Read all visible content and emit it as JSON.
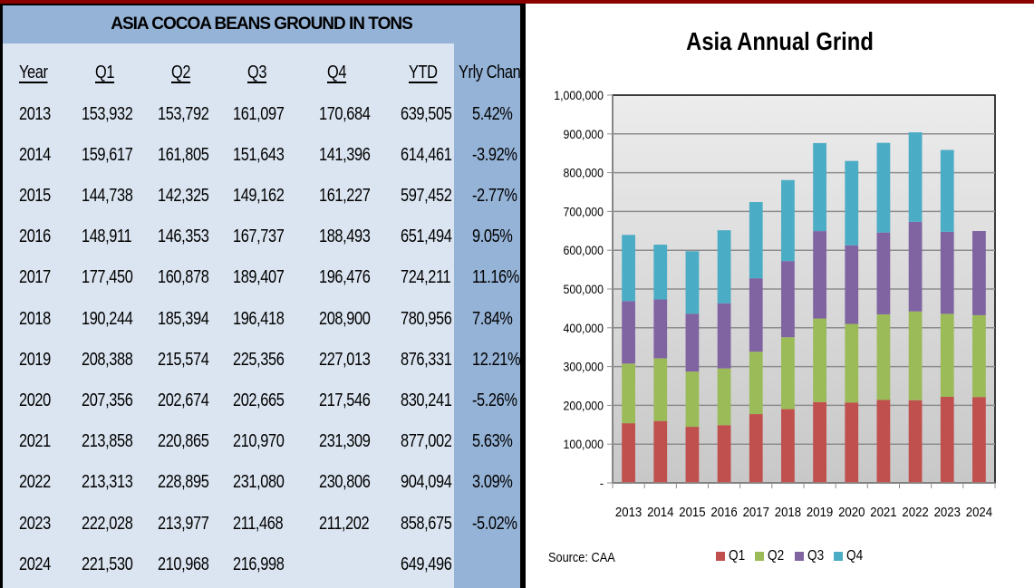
{
  "table": {
    "title": "ASIA COCOA BEANS GROUND IN TONS",
    "headers": [
      "Year",
      "Q1",
      "Q2",
      "Q3",
      "Q4",
      "YTD",
      "Yrly Change"
    ],
    "rows": [
      {
        "year": "2013",
        "q1": "153,932",
        "q2": "153,792",
        "q3": "161,097",
        "q4": "170,684",
        "ytd": "639,505",
        "change": "5.42%"
      },
      {
        "year": "2014",
        "q1": "159,617",
        "q2": "161,805",
        "q3": "151,643",
        "q4": "141,396",
        "ytd": "614,461",
        "change": "-3.92%"
      },
      {
        "year": "2015",
        "q1": "144,738",
        "q2": "142,325",
        "q3": "149,162",
        "q4": "161,227",
        "ytd": "597,452",
        "change": "-2.77%"
      },
      {
        "year": "2016",
        "q1": "148,911",
        "q2": "146,353",
        "q3": "167,737",
        "q4": "188,493",
        "ytd": "651,494",
        "change": "9.05%"
      },
      {
        "year": "2017",
        "q1": "177,450",
        "q2": "160,878",
        "q3": "189,407",
        "q4": "196,476",
        "ytd": "724,211",
        "change": "11.16%"
      },
      {
        "year": "2018",
        "q1": "190,244",
        "q2": "185,394",
        "q3": "196,418",
        "q4": "208,900",
        "ytd": "780,956",
        "change": "7.84%"
      },
      {
        "year": "2019",
        "q1": "208,388",
        "q2": "215,574",
        "q3": "225,356",
        "q4": "227,013",
        "ytd": "876,331",
        "change": "12.21%"
      },
      {
        "year": "2020",
        "q1": "207,356",
        "q2": "202,674",
        "q3": "202,665",
        "q4": "217,546",
        "ytd": "830,241",
        "change": "-5.26%"
      },
      {
        "year": "2021",
        "q1": "213,858",
        "q2": "220,865",
        "q3": "210,970",
        "q4": "231,309",
        "ytd": "877,002",
        "change": "5.63%"
      },
      {
        "year": "2022",
        "q1": "213,313",
        "q2": "228,895",
        "q3": "231,080",
        "q4": "230,806",
        "ytd": "904,094",
        "change": "3.09%"
      },
      {
        "year": "2023",
        "q1": "222,028",
        "q2": "213,977",
        "q3": "211,468",
        "q4": "211,202",
        "ytd": "858,675",
        "change": "-5.02%"
      },
      {
        "year": "2024",
        "q1": "221,530",
        "q2": "210,968",
        "q3": "216,998",
        "q4": "",
        "ytd": "649,496",
        "change": ""
      }
    ]
  },
  "chart_data": {
    "type": "bar",
    "stacked": true,
    "title": "Asia Annual Grind",
    "xlabel": "",
    "ylabel": "",
    "categories": [
      "2013",
      "2014",
      "2015",
      "2016",
      "2017",
      "2018",
      "2019",
      "2020",
      "2021",
      "2022",
      "2023",
      "2024"
    ],
    "series": [
      {
        "name": "Q1",
        "color": "#c0504d",
        "values": [
          153932,
          159617,
          144738,
          148911,
          177450,
          190244,
          208388,
          207356,
          213858,
          213313,
          222028,
          221530
        ]
      },
      {
        "name": "Q2",
        "color": "#9bbb59",
        "values": [
          153792,
          161805,
          142325,
          146353,
          160878,
          185394,
          215574,
          202674,
          220865,
          228895,
          213977,
          210968
        ]
      },
      {
        "name": "Q3",
        "color": "#8064a2",
        "values": [
          161097,
          151643,
          149162,
          167737,
          189407,
          196418,
          225356,
          202665,
          210970,
          231080,
          211468,
          216998
        ]
      },
      {
        "name": "Q4",
        "color": "#4bacc6",
        "values": [
          170684,
          141396,
          161227,
          188493,
          196476,
          208900,
          227013,
          217546,
          231309,
          230806,
          211202,
          0
        ]
      }
    ],
    "ylim": [
      0,
      1000000
    ],
    "yticks": [
      0,
      100000,
      200000,
      300000,
      400000,
      500000,
      600000,
      700000,
      800000,
      900000,
      1000000
    ],
    "ytick_labels": [
      "-",
      "100,000",
      "200,000",
      "300,000",
      "400,000",
      "500,000",
      "600,000",
      "700,000",
      "800,000",
      "900,000",
      "1,000,000"
    ],
    "grid": true,
    "legend_position": "bottom",
    "source": "Source: CAA"
  }
}
